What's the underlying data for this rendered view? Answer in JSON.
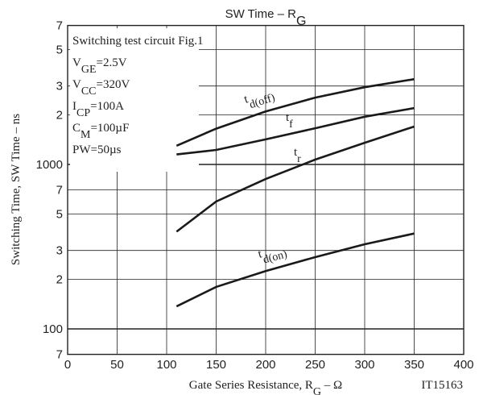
{
  "chart_data": {
    "type": "line",
    "title": [
      "SW Time  –  R",
      "G"
    ],
    "x_label": [
      "Gate Series Resistance, R",
      "G",
      "  –  Ω"
    ],
    "y_label": "Switching Time, SW Time  –  ns",
    "code": "IT15163",
    "annotations": [
      [
        "Switching test circuit Fig.1"
      ],
      [
        "V",
        "GE",
        "=2.5V"
      ],
      [
        "V",
        "CC",
        "=320V"
      ],
      [
        "I",
        "CP",
        "=100A"
      ],
      [
        "C",
        "M",
        "=100µF"
      ],
      [
        "PW=50µs"
      ]
    ],
    "x": [
      110,
      150,
      200,
      250,
      300,
      350
    ],
    "series": [
      {
        "label": [
          "t",
          "d(off)"
        ],
        "color": "#1a1a1a",
        "values": [
          1300,
          1650,
          2100,
          2550,
          2950,
          3300
        ]
      },
      {
        "label": [
          "t",
          "f"
        ],
        "color": "#1a1a1a",
        "values": [
          1150,
          1225,
          1420,
          1660,
          1950,
          2200
        ]
      },
      {
        "label": [
          "t",
          "r"
        ],
        "color": "#1a1a1a",
        "values": [
          390,
          595,
          815,
          1070,
          1355,
          1700
        ]
      },
      {
        "label": [
          "t",
          "d(on)"
        ],
        "color": "#1a1a1a",
        "values": [
          137,
          180,
          225,
          273,
          327,
          380
        ]
      }
    ],
    "xlim": [
      0,
      400
    ],
    "xticks": [
      0,
      50,
      100,
      150,
      200,
      250,
      300,
      350,
      400
    ],
    "ylim": [
      70,
      7000
    ],
    "log_y": true,
    "yticks": [
      {
        "value": 7000,
        "label": "7"
      },
      {
        "value": 5000,
        "label": "5"
      },
      {
        "value": 3000,
        "label": "3"
      },
      {
        "value": 2000,
        "label": "2"
      },
      1000,
      {
        "value": 700,
        "label": "7"
      },
      {
        "value": 500,
        "label": "5"
      },
      {
        "value": 300,
        "label": "3"
      },
      {
        "value": 200,
        "label": "2"
      },
      100,
      {
        "value": 70,
        "label": "7"
      }
    ],
    "grid": true
  }
}
